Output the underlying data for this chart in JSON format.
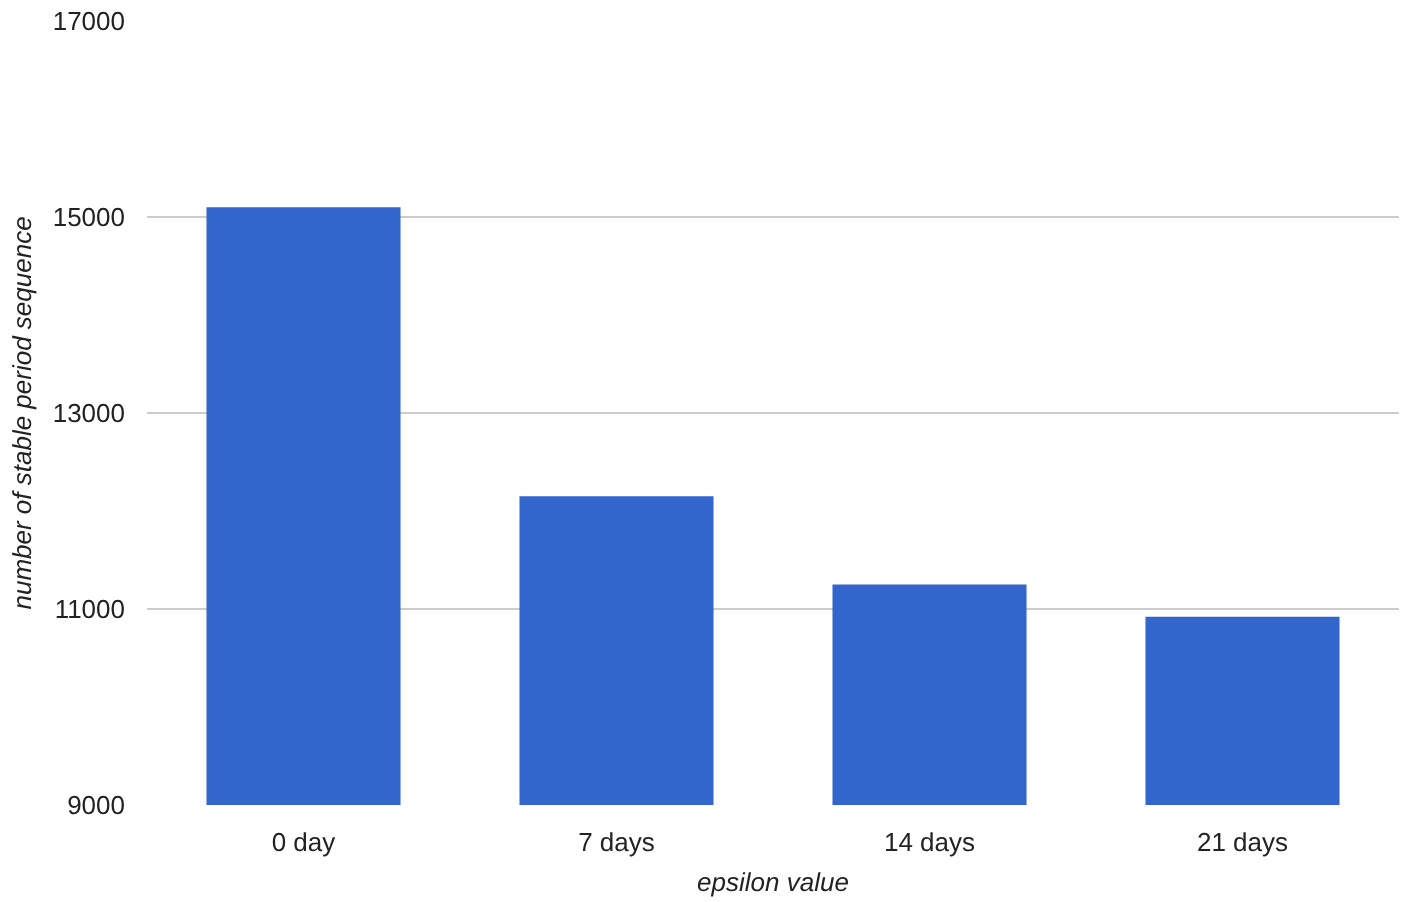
{
  "chart_data": {
    "type": "bar",
    "xlabel": "epsilon value",
    "ylabel": "number of stable period sequence",
    "categories": [
      "0 day",
      "7 days",
      "14 days",
      "21 days"
    ],
    "values": [
      15100,
      12150,
      11250,
      10920
    ],
    "color": "#3366cc",
    "ylim": [
      9000,
      17000
    ],
    "yticks": [
      9000,
      11000,
      13000,
      15000,
      17000
    ],
    "grid": "y"
  }
}
